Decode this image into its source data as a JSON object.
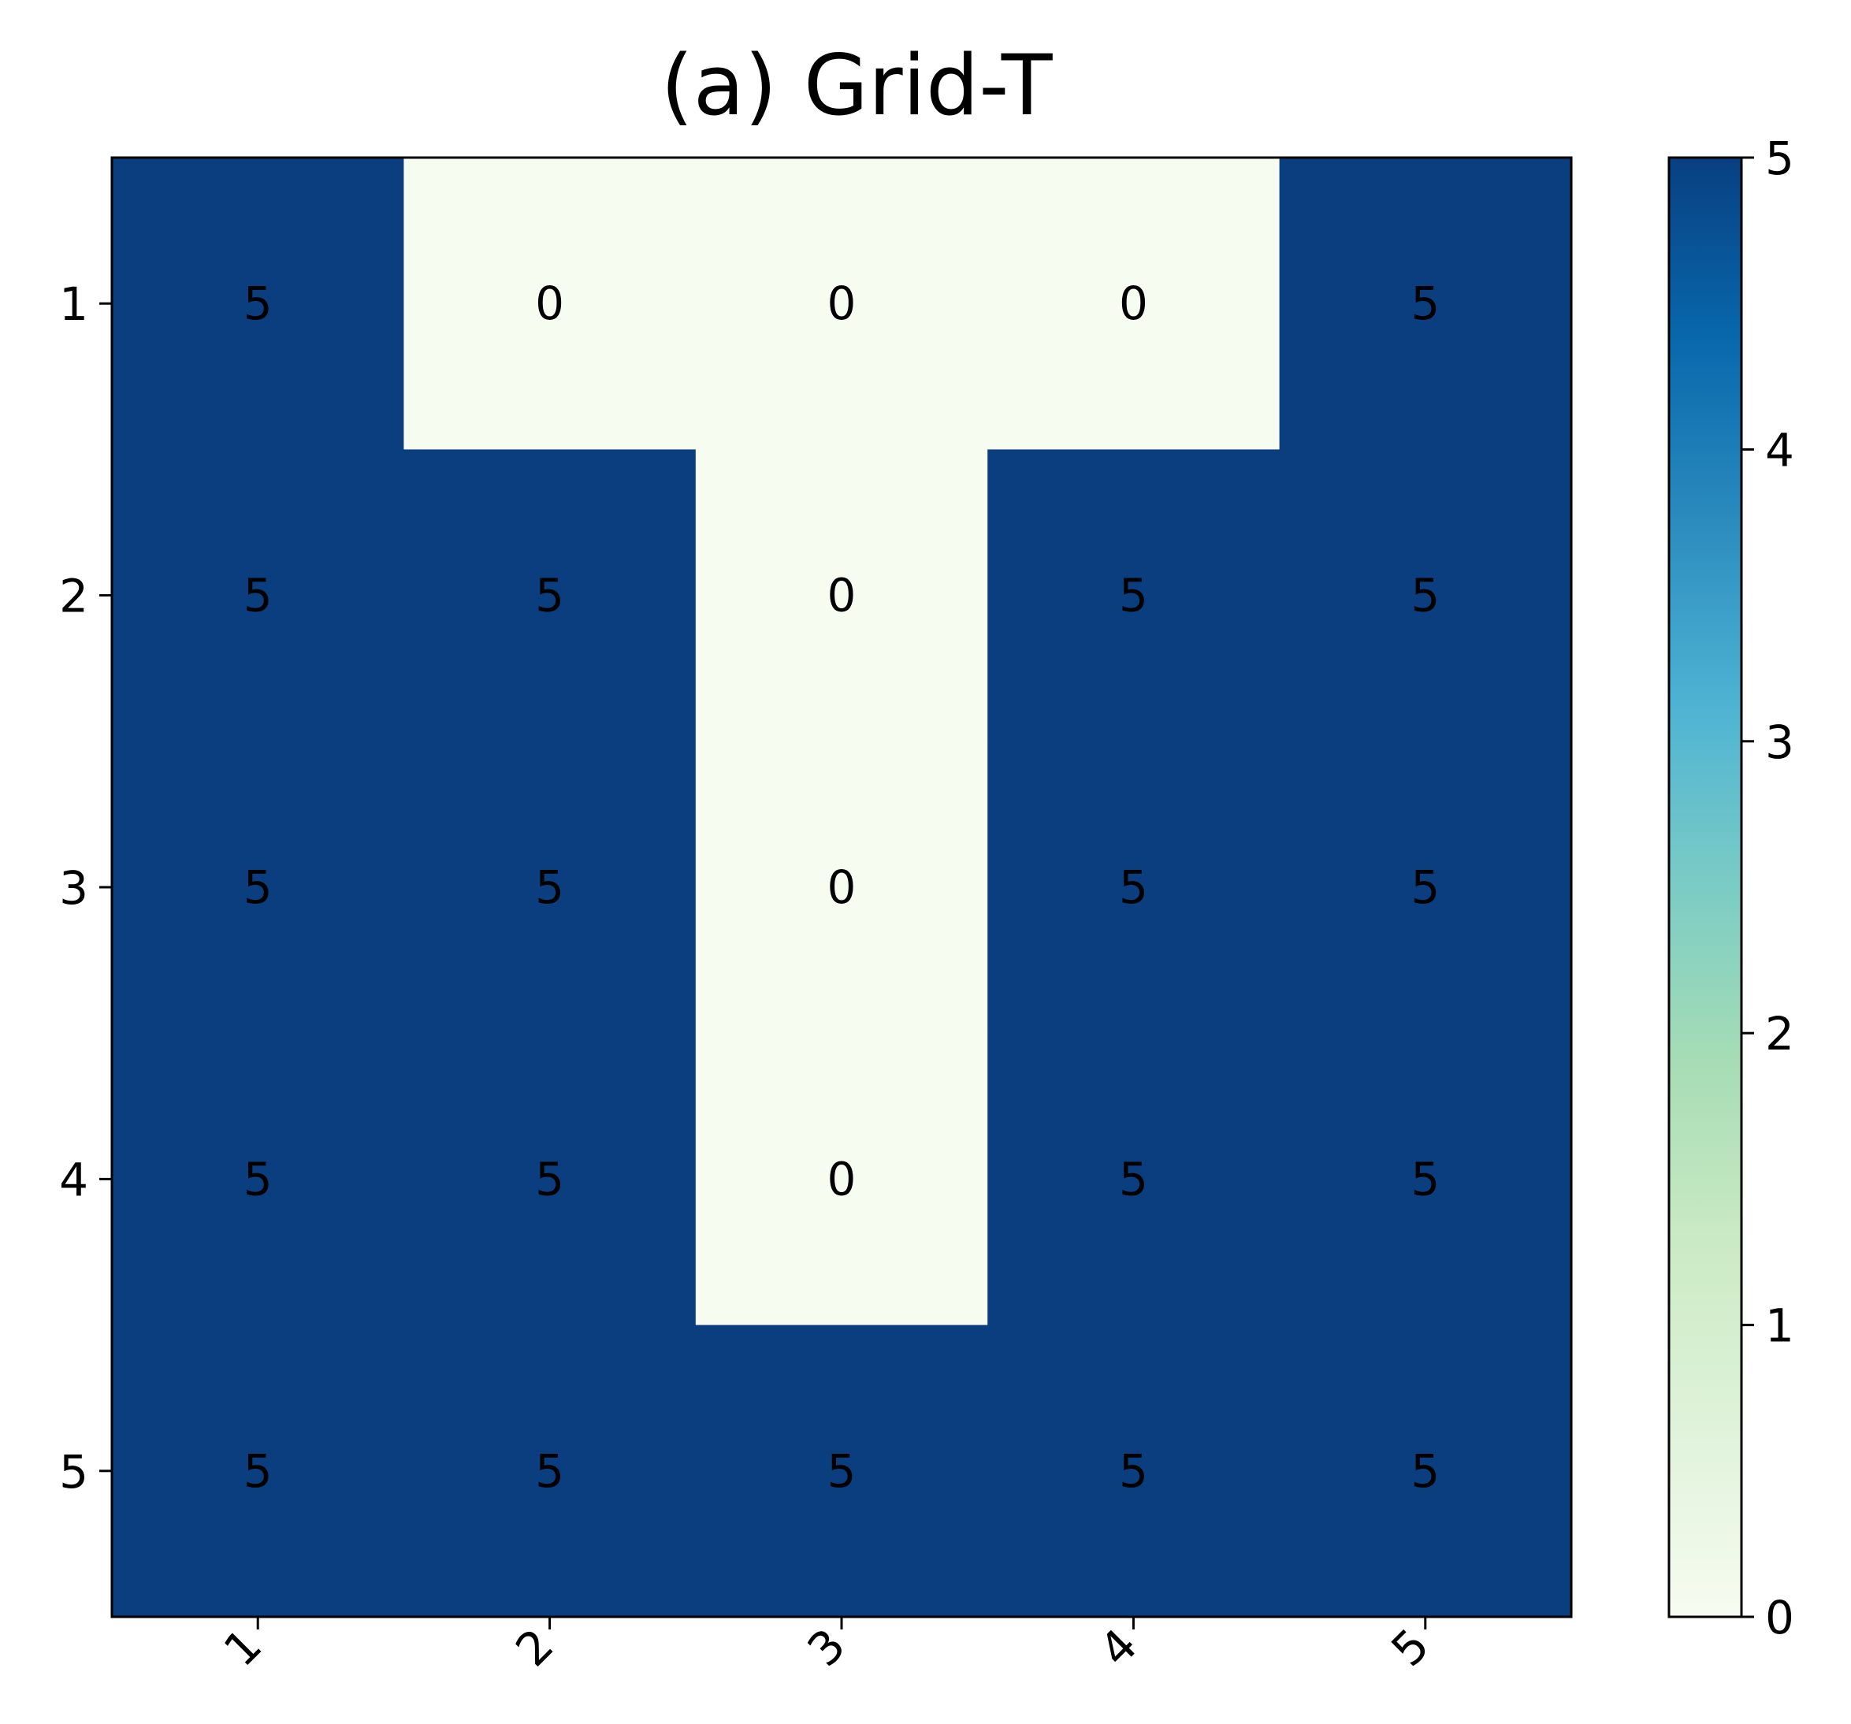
{
  "chart_data": {
    "type": "heatmap",
    "title": "(a) Grid-T",
    "xlabel": "",
    "ylabel": "",
    "x_tick_labels": [
      "1",
      "2",
      "3",
      "4",
      "5"
    ],
    "y_tick_labels": [
      "1",
      "2",
      "3",
      "4",
      "5"
    ],
    "values": [
      [
        5,
        0,
        0,
        0,
        5
      ],
      [
        5,
        5,
        0,
        5,
        5
      ],
      [
        5,
        5,
        0,
        5,
        5
      ],
      [
        5,
        5,
        0,
        5,
        5
      ],
      [
        5,
        5,
        5,
        5,
        5
      ]
    ],
    "colorbar": {
      "range": [
        0,
        5
      ],
      "ticks": [
        "0",
        "1",
        "2",
        "3",
        "4",
        "5"
      ],
      "colormap": "GnBu",
      "stops": [
        "#f7fcf0",
        "#e0f3db",
        "#ccebc5",
        "#a8ddb5",
        "#7bccc4",
        "#4eb3d3",
        "#2b8cbe",
        "#0868ac",
        "#084081"
      ]
    },
    "x_tick_rotation": 45,
    "grid": false,
    "colors": {
      "low": "#f7fcf0",
      "high": "#0a3e7e"
    }
  }
}
